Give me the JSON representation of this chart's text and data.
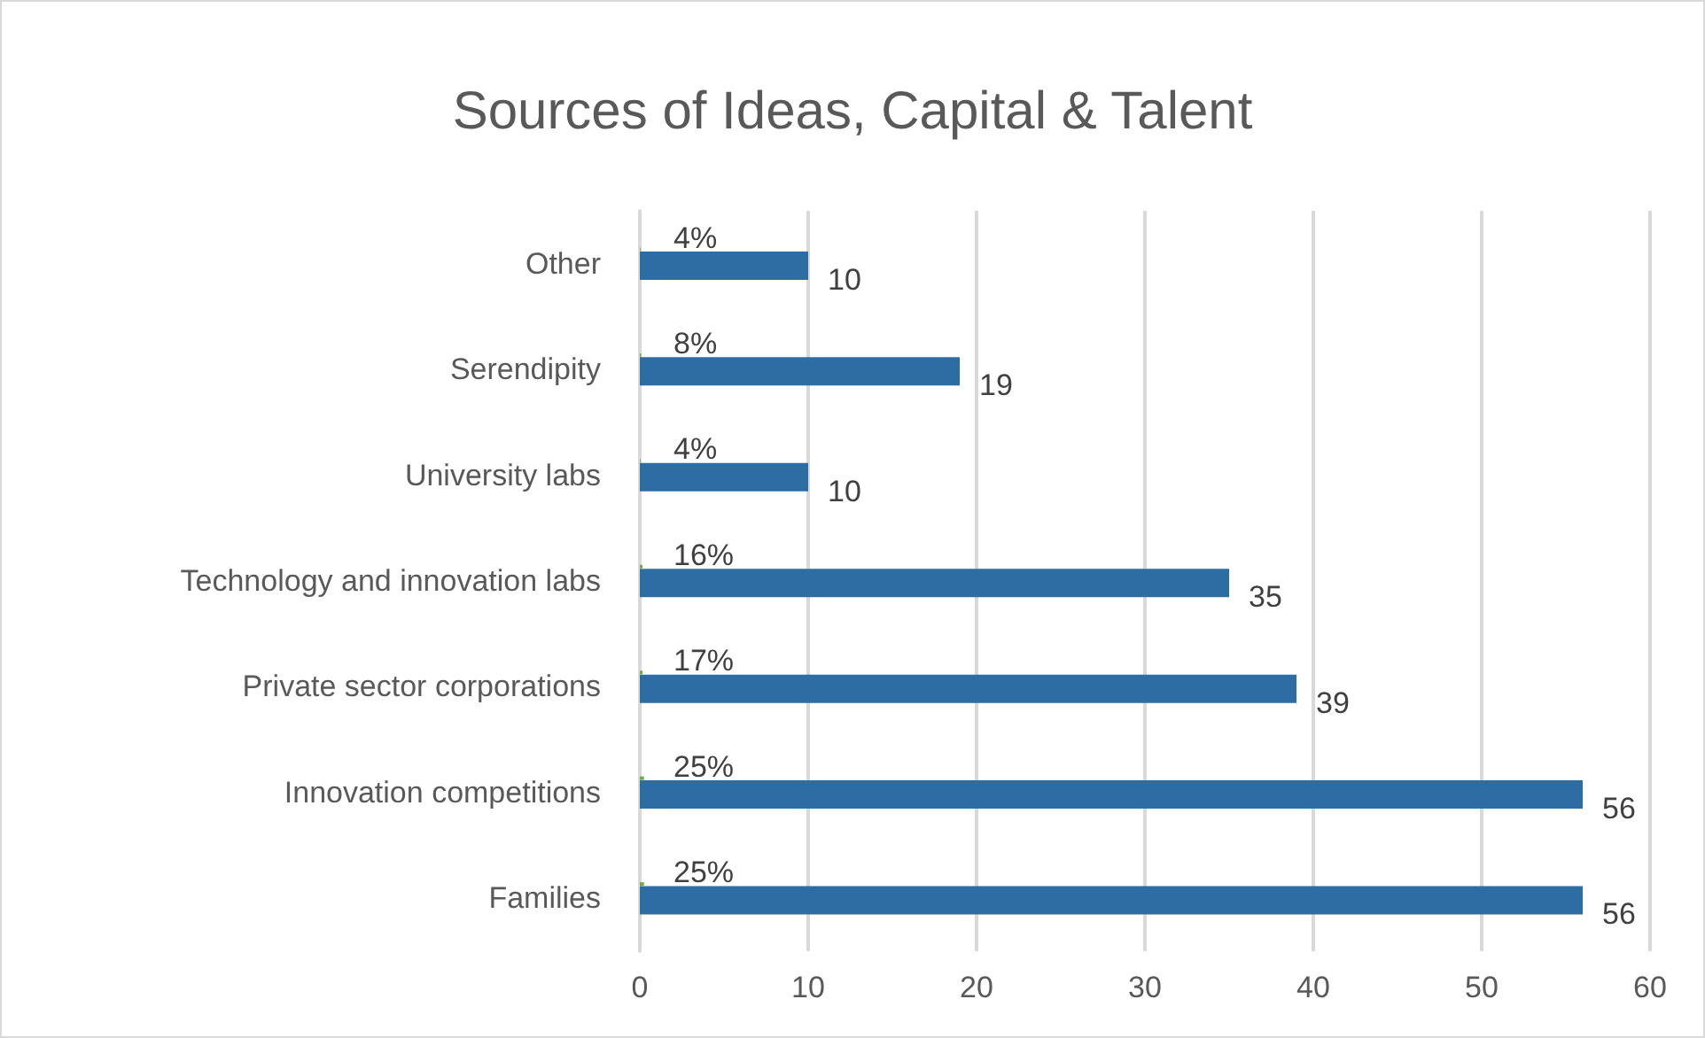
{
  "chart_data": {
    "type": "bar",
    "orientation": "horizontal",
    "title": "Sources of Ideas, Capital & Talent",
    "categories": [
      "Other",
      "Serendipity",
      "University labs",
      "Technology and innovation labs",
      "Private sector corporations",
      "Innovation competitions",
      "Families"
    ],
    "series": [
      {
        "color": "#70ad47",
        "values": [
          0.04,
          0.08,
          0.04,
          0.16,
          0.17,
          0.25,
          0.25
        ],
        "value_labels": [
          "4%",
          "8%",
          "4%",
          "16%",
          "17%",
          "25%",
          "25%"
        ]
      },
      {
        "color": "#2e6da4",
        "values": [
          10,
          19,
          10,
          35,
          39,
          56,
          56
        ],
        "value_labels": [
          "10",
          "19",
          "10",
          "35",
          "39",
          "56",
          "56"
        ]
      }
    ],
    "xlim": [
      0,
      60
    ],
    "xticks": [
      0,
      10,
      20,
      30,
      40,
      50,
      60
    ],
    "grid": "x"
  }
}
